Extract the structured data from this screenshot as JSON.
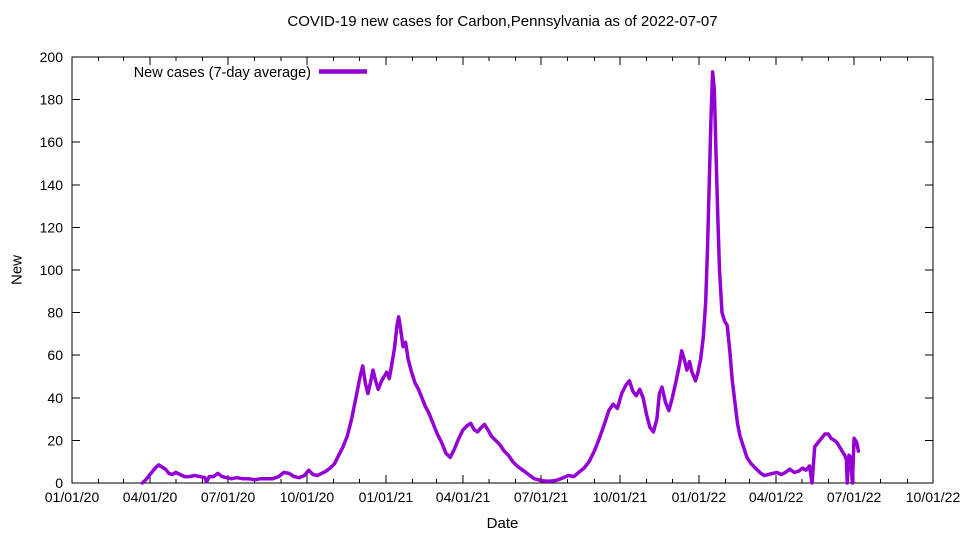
{
  "title": "COVID-19 new cases for Carbon,Pennsylvania as of 2022-07-07",
  "chart_data": {
    "type": "line",
    "title": "COVID-19 new cases for Carbon,Pennsylvania as of 2022-07-07",
    "xlabel": "Date",
    "ylabel": "New",
    "ylim": [
      0,
      200
    ],
    "y_ticks": [
      0,
      20,
      40,
      60,
      80,
      100,
      120,
      140,
      160,
      180,
      200
    ],
    "x_range": [
      "2020-01-01",
      "2022-10-01"
    ],
    "x_ticks": [
      {
        "date": "2020-01-01",
        "label": "01/01/20"
      },
      {
        "date": "2020-04-01",
        "label": "04/01/20"
      },
      {
        "date": "2020-07-01",
        "label": "07/01/20"
      },
      {
        "date": "2020-10-01",
        "label": "10/01/20"
      },
      {
        "date": "2021-01-01",
        "label": "01/01/21"
      },
      {
        "date": "2021-04-01",
        "label": "04/01/21"
      },
      {
        "date": "2021-07-01",
        "label": "07/01/21"
      },
      {
        "date": "2021-10-01",
        "label": "10/01/21"
      },
      {
        "date": "2022-01-01",
        "label": "01/01/22"
      },
      {
        "date": "2022-04-01",
        "label": "04/01/22"
      },
      {
        "date": "2022-07-01",
        "label": "07/01/22"
      },
      {
        "date": "2022-10-01",
        "label": "10/01/22"
      }
    ],
    "grid": false,
    "legend": {
      "position": "top-left-inside"
    },
    "series": [
      {
        "name": "New cases (7-day average)",
        "color": "#9400d3",
        "points": [
          [
            "2020-03-23",
            0
          ],
          [
            "2020-03-27",
            1.5
          ],
          [
            "2020-04-01",
            4
          ],
          [
            "2020-04-07",
            7
          ],
          [
            "2020-04-11",
            8.5
          ],
          [
            "2020-04-15",
            7.5
          ],
          [
            "2020-04-19",
            6.5
          ],
          [
            "2020-04-23",
            4.5
          ],
          [
            "2020-04-27",
            4
          ],
          [
            "2020-05-01",
            5
          ],
          [
            "2020-05-06",
            4
          ],
          [
            "2020-05-11",
            3
          ],
          [
            "2020-05-17",
            3
          ],
          [
            "2020-05-23",
            3.5
          ],
          [
            "2020-05-29",
            3
          ],
          [
            "2020-06-04",
            2.5
          ],
          [
            "2020-06-06",
            0.5
          ],
          [
            "2020-06-09",
            3
          ],
          [
            "2020-06-14",
            3
          ],
          [
            "2020-06-19",
            4.5
          ],
          [
            "2020-06-24",
            3
          ],
          [
            "2020-06-29",
            2.5
          ],
          [
            "2020-07-05",
            2
          ],
          [
            "2020-07-11",
            2.5
          ],
          [
            "2020-07-18",
            2
          ],
          [
            "2020-07-25",
            2
          ],
          [
            "2020-08-01",
            1.5
          ],
          [
            "2020-08-08",
            2
          ],
          [
            "2020-08-15",
            2
          ],
          [
            "2020-08-22",
            2
          ],
          [
            "2020-08-29",
            3
          ],
          [
            "2020-09-04",
            5
          ],
          [
            "2020-09-10",
            4.5
          ],
          [
            "2020-09-16",
            3
          ],
          [
            "2020-09-22",
            2.5
          ],
          [
            "2020-09-28",
            3.5
          ],
          [
            "2020-10-03",
            6
          ],
          [
            "2020-10-08",
            4
          ],
          [
            "2020-10-13",
            3.5
          ],
          [
            "2020-10-18",
            4.5
          ],
          [
            "2020-10-23",
            5.5
          ],
          [
            "2020-10-28",
            7
          ],
          [
            "2020-11-02",
            9
          ],
          [
            "2020-11-07",
            13
          ],
          [
            "2020-11-12",
            17
          ],
          [
            "2020-11-17",
            22
          ],
          [
            "2020-11-22",
            30
          ],
          [
            "2020-11-27",
            40
          ],
          [
            "2020-12-02",
            50
          ],
          [
            "2020-12-05",
            55
          ],
          [
            "2020-12-08",
            47
          ],
          [
            "2020-12-11",
            42
          ],
          [
            "2020-12-14",
            47
          ],
          [
            "2020-12-17",
            53
          ],
          [
            "2020-12-20",
            48
          ],
          [
            "2020-12-23",
            44
          ],
          [
            "2020-12-27",
            48
          ],
          [
            "2020-12-30",
            50
          ],
          [
            "2021-01-02",
            52
          ],
          [
            "2021-01-05",
            49
          ],
          [
            "2021-01-08",
            56
          ],
          [
            "2021-01-11",
            63
          ],
          [
            "2021-01-14",
            74
          ],
          [
            "2021-01-16",
            78
          ],
          [
            "2021-01-18",
            73
          ],
          [
            "2021-01-21",
            64
          ],
          [
            "2021-01-24",
            66
          ],
          [
            "2021-01-27",
            58
          ],
          [
            "2021-01-31",
            52
          ],
          [
            "2021-02-04",
            47
          ],
          [
            "2021-02-08",
            44
          ],
          [
            "2021-02-12",
            40
          ],
          [
            "2021-02-16",
            36
          ],
          [
            "2021-02-20",
            33
          ],
          [
            "2021-02-25",
            28
          ],
          [
            "2021-03-02",
            23
          ],
          [
            "2021-03-07",
            19
          ],
          [
            "2021-03-12",
            14
          ],
          [
            "2021-03-17",
            12
          ],
          [
            "2021-03-22",
            16
          ],
          [
            "2021-03-27",
            21
          ],
          [
            "2021-04-01",
            25
          ],
          [
            "2021-04-06",
            27
          ],
          [
            "2021-04-10",
            28
          ],
          [
            "2021-04-14",
            25
          ],
          [
            "2021-04-18",
            24
          ],
          [
            "2021-04-22",
            26
          ],
          [
            "2021-04-26",
            27.5
          ],
          [
            "2021-04-30",
            25
          ],
          [
            "2021-05-04",
            22
          ],
          [
            "2021-05-09",
            20
          ],
          [
            "2021-05-14",
            18
          ],
          [
            "2021-05-19",
            15
          ],
          [
            "2021-05-24",
            13
          ],
          [
            "2021-05-29",
            10
          ],
          [
            "2021-06-03",
            8
          ],
          [
            "2021-06-08",
            6.5
          ],
          [
            "2021-06-13",
            5
          ],
          [
            "2021-06-18",
            3.5
          ],
          [
            "2021-06-23",
            2
          ],
          [
            "2021-06-28",
            1.5
          ],
          [
            "2021-07-03",
            1
          ],
          [
            "2021-07-09",
            0.8
          ],
          [
            "2021-07-15",
            1
          ],
          [
            "2021-07-21",
            1.5
          ],
          [
            "2021-07-27",
            2.5
          ],
          [
            "2021-08-02",
            3.5
          ],
          [
            "2021-08-08",
            3
          ],
          [
            "2021-08-14",
            5
          ],
          [
            "2021-08-20",
            7
          ],
          [
            "2021-08-26",
            10
          ],
          [
            "2021-09-01",
            15
          ],
          [
            "2021-09-07",
            21
          ],
          [
            "2021-09-13",
            28
          ],
          [
            "2021-09-18",
            34
          ],
          [
            "2021-09-23",
            37
          ],
          [
            "2021-09-28",
            35
          ],
          [
            "2021-10-03",
            42
          ],
          [
            "2021-10-08",
            46
          ],
          [
            "2021-10-12",
            48
          ],
          [
            "2021-10-16",
            43
          ],
          [
            "2021-10-20",
            41
          ],
          [
            "2021-10-24",
            44
          ],
          [
            "2021-10-28",
            40
          ],
          [
            "2021-11-01",
            32
          ],
          [
            "2021-11-05",
            26
          ],
          [
            "2021-11-09",
            24
          ],
          [
            "2021-11-13",
            30
          ],
          [
            "2021-11-16",
            42
          ],
          [
            "2021-11-19",
            45
          ],
          [
            "2021-11-23",
            38
          ],
          [
            "2021-11-27",
            34
          ],
          [
            "2021-12-01",
            40
          ],
          [
            "2021-12-05",
            47
          ],
          [
            "2021-12-09",
            55
          ],
          [
            "2021-12-12",
            62
          ],
          [
            "2021-12-15",
            58
          ],
          [
            "2021-12-18",
            53
          ],
          [
            "2021-12-21",
            57
          ],
          [
            "2021-12-24",
            52
          ],
          [
            "2021-12-28",
            48
          ],
          [
            "2021-12-31",
            52
          ],
          [
            "2022-01-03",
            58
          ],
          [
            "2022-01-06",
            68
          ],
          [
            "2022-01-09",
            85
          ],
          [
            "2022-01-11",
            110
          ],
          [
            "2022-01-13",
            140
          ],
          [
            "2022-01-15",
            170
          ],
          [
            "2022-01-17",
            193
          ],
          [
            "2022-01-19",
            185
          ],
          [
            "2022-01-21",
            155
          ],
          [
            "2022-01-23",
            125
          ],
          [
            "2022-01-25",
            100
          ],
          [
            "2022-01-28",
            80
          ],
          [
            "2022-01-31",
            76
          ],
          [
            "2022-02-03",
            74
          ],
          [
            "2022-02-06",
            62
          ],
          [
            "2022-02-09",
            48
          ],
          [
            "2022-02-12",
            38
          ],
          [
            "2022-02-15",
            28
          ],
          [
            "2022-02-18",
            22
          ],
          [
            "2022-02-22",
            17
          ],
          [
            "2022-02-26",
            12
          ],
          [
            "2022-03-03",
            9
          ],
          [
            "2022-03-08",
            7
          ],
          [
            "2022-03-13",
            5
          ],
          [
            "2022-03-18",
            3.5
          ],
          [
            "2022-03-23",
            4
          ],
          [
            "2022-03-28",
            4.5
          ],
          [
            "2022-04-02",
            5
          ],
          [
            "2022-04-07",
            4
          ],
          [
            "2022-04-12",
            5
          ],
          [
            "2022-04-17",
            6.5
          ],
          [
            "2022-04-22",
            5
          ],
          [
            "2022-04-27",
            5.5
          ],
          [
            "2022-05-02",
            7
          ],
          [
            "2022-05-06",
            6
          ],
          [
            "2022-05-10",
            8
          ],
          [
            "2022-05-13",
            0
          ],
          [
            "2022-05-16",
            17
          ],
          [
            "2022-05-20",
            19
          ],
          [
            "2022-05-24",
            21
          ],
          [
            "2022-05-28",
            23
          ],
          [
            "2022-06-01",
            23
          ],
          [
            "2022-06-04",
            21
          ],
          [
            "2022-06-08",
            20
          ],
          [
            "2022-06-11",
            19
          ],
          [
            "2022-06-14",
            17
          ],
          [
            "2022-06-17",
            15
          ],
          [
            "2022-06-20",
            13
          ],
          [
            "2022-06-22",
            11
          ],
          [
            "2022-06-23",
            0
          ],
          [
            "2022-06-25",
            13
          ],
          [
            "2022-06-27",
            12
          ],
          [
            "2022-06-29",
            0
          ],
          [
            "2022-07-01",
            21
          ],
          [
            "2022-07-04",
            19
          ],
          [
            "2022-07-06",
            15
          ]
        ]
      }
    ]
  }
}
